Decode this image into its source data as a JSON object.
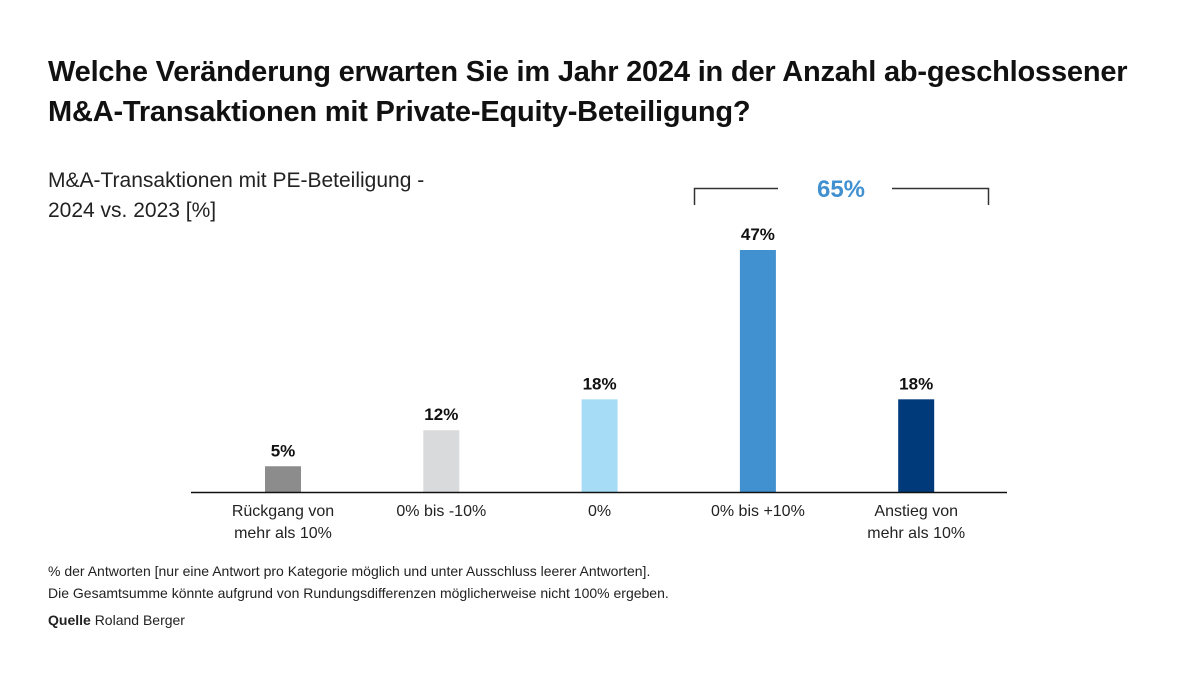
{
  "title": "Welche Veränderung erwarten Sie im Jahr 2024 in der Anzahl ab-geschlossener M&A-Transaktionen mit Private-Equity-Beteiligung?",
  "chart_data": {
    "type": "bar",
    "title": "Welche Veränderung erwarten Sie im Jahr 2024 in der Anzahl abgeschlossener M&A-Transaktionen mit Private-Equity-Beteiligung?",
    "subtitle_line1": "M&A-Transaktionen mit PE-Beteiligung -",
    "subtitle_line2": "2024 vs. 2023 [%]",
    "categories": [
      [
        "Rückgang von",
        "mehr als 10%"
      ],
      [
        "0% bis -10%"
      ],
      [
        "0%"
      ],
      [
        "0% bis +10%"
      ],
      [
        "Anstieg von",
        "mehr als 10%"
      ]
    ],
    "values": [
      5,
      12,
      18,
      47,
      18
    ],
    "value_labels": [
      "5%",
      "12%",
      "18%",
      "47%",
      "18%"
    ],
    "colors": [
      "#8c8c8c",
      "#d9dadc",
      "#a6dcf5",
      "#4190cf",
      "#003a7a"
    ],
    "ylim": [
      0,
      47
    ],
    "grid": false,
    "annotation": {
      "label": "65%",
      "spans_categories": [
        3,
        4
      ],
      "color": "#4190cf"
    },
    "xlabel": "",
    "ylabel": ""
  },
  "footnotes": {
    "line1": "% der Antworten [nur eine Antwort pro Kategorie möglich und unter Ausschluss leerer Antworten].",
    "line2": "Die Gesamtsumme könnte aufgrund von Rundungsdifferenzen möglicherweise nicht 100% ergeben.",
    "source_label": "Quelle",
    "source_value": "Roland Berger"
  }
}
